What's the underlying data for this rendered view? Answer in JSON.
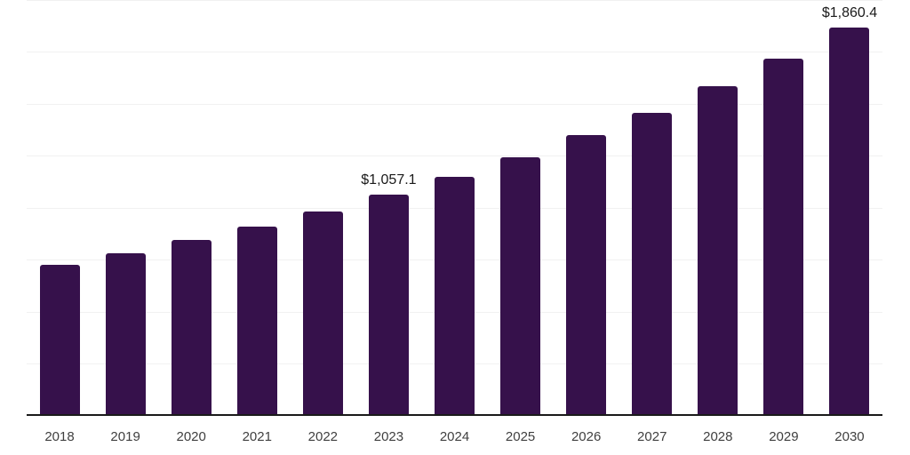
{
  "chart_data": {
    "type": "bar",
    "title": "",
    "xlabel": "",
    "ylabel": "",
    "categories": [
      "2018",
      "2019",
      "2020",
      "2021",
      "2022",
      "2023",
      "2024",
      "2025",
      "2026",
      "2027",
      "2028",
      "2029",
      "2030"
    ],
    "values": [
      719.0,
      773.5,
      837.5,
      901.7,
      976.5,
      1057.1,
      1141.0,
      1237.0,
      1342.0,
      1451.0,
      1579.0,
      1711.0,
      1860.4
    ],
    "labeled_points": [
      {
        "category": "2023",
        "label": "$1,057.1"
      },
      {
        "category": "2030",
        "label": "$1,860.4"
      }
    ],
    "ylim": [
      0,
      2000
    ],
    "gridline_interval": 250,
    "grid": true,
    "legend": false,
    "colors": {
      "bar": "#36114B",
      "axis": "#1a1a1a",
      "gridline": "#f1f1f1",
      "value_label": "#1a1a1a",
      "tick_label": "#3f3f3f",
      "background": "#ffffff"
    }
  }
}
